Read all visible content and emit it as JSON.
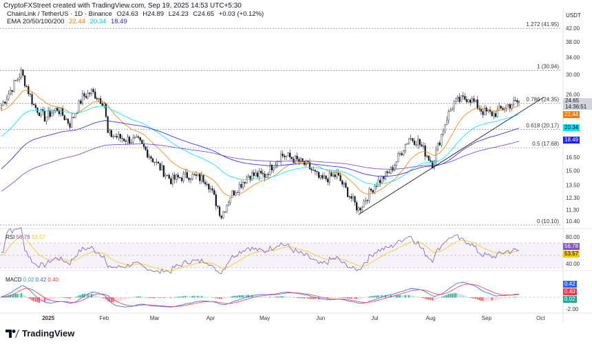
{
  "header": {
    "credit": "CryptoFXStreet created with TradingView.com, Sep 19, 2025 14:53 UTC+5:30"
  },
  "symbol": {
    "name": "ChainLink / TetherUS · 1D · Binance",
    "open": "O24.63",
    "high": "H24.89",
    "low": "L24.23",
    "close": "C24.65",
    "change": "+0.03 (+0.12%)"
  },
  "ema": {
    "label": "EMA 20/50/100/200",
    "v20": "22.44",
    "v50": "20.34",
    "v100": "18.49",
    "c20": "#f57c00",
    "c50": "#00e5ff",
    "c100": "#1e1ef0",
    "c200": "#6a3fd0"
  },
  "axis": {
    "currency": "USDT",
    "price_ticks": [
      "42.00",
      "38.00",
      "34.00",
      "30.00",
      "26.00",
      "16.50",
      "15.00",
      "13.50",
      "12.30",
      "11.30",
      "10.40"
    ],
    "time_ticks": [
      "2025",
      "Feb",
      "Mar",
      "Apr",
      "May",
      "Jun",
      "Jul",
      "Aug",
      "Sep",
      "Oct"
    ],
    "rsi_ticks": [
      "80.00",
      "40.00"
    ],
    "macd_ticks": [
      "-2.00"
    ]
  },
  "price_tag": {
    "price": "24.65",
    "countdown": "14:36:51"
  },
  "fib": [
    {
      "label": "1.272 (41.95)",
      "value": 41.95
    },
    {
      "label": "1 (30.94)",
      "value": 30.94
    },
    {
      "label": "0.786 (24.35)",
      "value": 24.35
    },
    {
      "label": "0.618 (20.17)",
      "value": 20.17
    },
    {
      "label": "0.5 (17.68)",
      "value": 17.68
    },
    {
      "label": "0 (10.10)",
      "value": 10.1
    }
  ],
  "rsi": {
    "label": "RSI",
    "value": "56.78",
    "ma": "53.57",
    "color": "#7e57c2",
    "ma_color": "#f5c518"
  },
  "macd": {
    "label": "MACD",
    "hist": "0.02",
    "macd": "0.42",
    "signal": "0.40",
    "macd_color": "#2962ff",
    "signal_color": "#f23645",
    "hist_color": "#26a69a"
  },
  "brand": {
    "name": "TradingView"
  },
  "chart_data": {
    "type": "candlestick",
    "scale": "log",
    "ylim": [
      10.1,
      44
    ],
    "x": [
      "2024-12-06",
      "2024-12-17",
      "2024-12-24",
      "2024-12-30",
      "2025-01-06",
      "2025-01-13",
      "2025-01-20",
      "2025-01-25",
      "2025-02-01",
      "2025-02-03",
      "2025-02-10",
      "2025-02-20",
      "2025-03-01",
      "2025-03-10",
      "2025-03-20",
      "2025-03-30",
      "2025-04-07",
      "2025-04-12",
      "2025-04-22",
      "2025-05-01",
      "2025-05-10",
      "2025-05-15",
      "2025-05-25",
      "2025-06-01",
      "2025-06-10",
      "2025-06-22",
      "2025-07-01",
      "2025-07-10",
      "2025-07-20",
      "2025-07-25",
      "2025-08-02",
      "2025-08-10",
      "2025-08-14",
      "2025-08-22",
      "2025-08-30",
      "2025-09-05",
      "2025-09-12",
      "2025-09-19"
    ],
    "close": [
      24,
      30.5,
      24,
      22,
      23.5,
      21,
      25.5,
      26.5,
      24.5,
      19.5,
      19,
      18.5,
      16,
      14,
      14.5,
      14,
      10.8,
      12.5,
      14.5,
      14.5,
      16.8,
      16.5,
      15.5,
      14,
      14.5,
      11.3,
      13.5,
      15,
      19,
      18.5,
      15.8,
      22,
      24.5,
      25.5,
      23,
      22.5,
      24,
      24.65
    ]
  }
}
